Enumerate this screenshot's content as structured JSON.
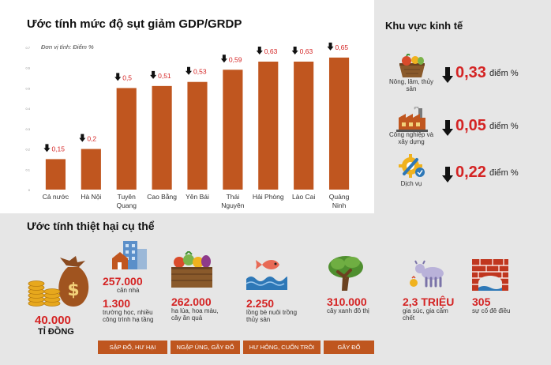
{
  "chart_data": {
    "type": "bar",
    "title": "Ước tính mức độ sụt giảm GDP/GRDP",
    "unit_note": "Đơn vị tính: Điểm %",
    "categories": [
      [
        "Cả nước"
      ],
      [
        "Hà Nội"
      ],
      [
        "Tuyên",
        "Quang"
      ],
      [
        "Cao Bằng"
      ],
      [
        "Yên Bái"
      ],
      [
        "Thái",
        "Nguyên"
      ],
      [
        "Hải Phòng"
      ],
      [
        "Lào Cai"
      ],
      [
        "Quảng",
        "Ninh"
      ]
    ],
    "values": [
      0.15,
      0.2,
      0.5,
      0.51,
      0.53,
      0.59,
      0.63,
      0.63,
      0.65
    ],
    "value_labels": [
      "0,15",
      "0,2",
      "0,5",
      "0,51",
      "0,53",
      "0,59",
      "0,63",
      "0,63",
      "0,65"
    ],
    "ylim": [
      0,
      0.7
    ],
    "y_ticks": [
      0,
      0.1,
      0.2,
      0.3,
      0.4,
      0.5,
      0.6,
      0.7
    ],
    "y_tick_labels": [
      "0",
      "0.1",
      "0.2",
      "0.3",
      "0.4",
      "0.5",
      "0.6",
      "0.7"
    ],
    "bar_color": "#c0561f",
    "label_color": "#d42323",
    "grid": false
  },
  "sectors": {
    "title": "Khu vực kinh tế",
    "items": [
      {
        "name": "Nông, lâm, thủy sản",
        "value": "0,33",
        "unit": "điểm %",
        "icon": "agriculture-icon"
      },
      {
        "name": "Công nghiệp và xây dựng",
        "value": "0,05",
        "unit": "điểm %",
        "icon": "factory-icon"
      },
      {
        "name": "Dịch vụ",
        "value": "0,22",
        "unit": "điểm %",
        "icon": "gear-wrench-icon"
      }
    ]
  },
  "damage": {
    "title": "Ước tính thiệt hại cụ thể",
    "money": {
      "value": "40.000",
      "unit": "TỈ ĐỒNG",
      "icon": "money-bag-icon"
    },
    "houses": {
      "value": "257.000",
      "text": "căn nhà",
      "icon": "buildings-icon"
    },
    "schools": {
      "value": "1.300",
      "text": "trường học, nhiều công trình hạ tầng"
    },
    "crops": {
      "value": "262.000",
      "text": "ha lúa, hoa màu, cây ăn quả",
      "icon": "vegetables-crate-icon"
    },
    "fish": {
      "value": "2.250",
      "text": "lồng bè nuôi trồng thủy sản",
      "icon": "fish-icon"
    },
    "trees": {
      "value": "310.000",
      "text": "cây xanh đô thị",
      "icon": "tree-icon"
    },
    "livestock": {
      "value": "2,3 TRIỆU",
      "text": "gia súc, gia cầm chết",
      "icon": "livestock-icon"
    },
    "dikes": {
      "value": "305",
      "text": "sự cố đê điều",
      "icon": "dike-icon"
    },
    "categories": [
      "SẬP ĐỔ, HƯ HẠI",
      "NGẬP ÚNG, GÃY ĐỔ",
      "HƯ HỎNG, CUỐN TRÔI",
      "GÃY ĐỔ"
    ]
  }
}
